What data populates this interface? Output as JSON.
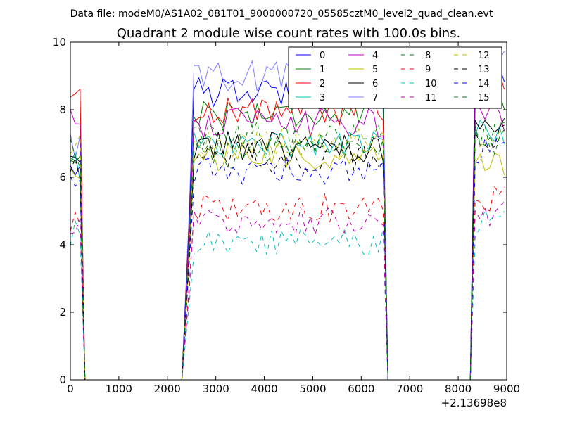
{
  "suptitle": "Data file: modeM0/AS1A02_081T01_9000000720_05585cztM0_level2_quad_clean.evt",
  "chart_data": {
    "type": "line",
    "title": "Quadrant 2 module wise count rates with 100.0s bins.",
    "xlabel": "",
    "ylabel": "",
    "xlim": [
      0,
      9000
    ],
    "ylim": [
      0,
      10
    ],
    "x_offset_label": "+2.13698e8",
    "xticks": [
      0,
      1000,
      2000,
      3000,
      4000,
      5000,
      6000,
      7000,
      8000,
      9000
    ],
    "yticks": [
      0,
      2,
      4,
      6,
      8,
      10
    ],
    "grid": false,
    "legend_position": "top-right",
    "legend_columns": 4,
    "segments": [
      {
        "start": 0,
        "end": 200
      },
      {
        "start": 2450,
        "end": 6450
      },
      {
        "start": 8350,
        "end": 9000
      }
    ],
    "zero_runs": [
      [
        300,
        2350
      ],
      [
        6550,
        8250
      ]
    ],
    "series": [
      {
        "name": "0",
        "color": "#0000ff",
        "dash": "solid",
        "alpha": 1.0,
        "level_a": 6.4,
        "level_b": 8.5,
        "level_c": 9.2
      },
      {
        "name": "1",
        "color": "#008000",
        "dash": "solid",
        "alpha": 1.0,
        "level_a": 6.5,
        "level_b": 7.9,
        "level_c": 8.4
      },
      {
        "name": "2",
        "color": "#ff0000",
        "dash": "solid",
        "alpha": 1.0,
        "level_a": 8.3,
        "level_b": 8.0,
        "level_c": 9.0
      },
      {
        "name": "3",
        "color": "#00bfbf",
        "dash": "solid",
        "alpha": 1.0,
        "level_a": 6.3,
        "level_b": 7.0,
        "level_c": 7.4
      },
      {
        "name": "4",
        "color": "#bf00bf",
        "dash": "solid",
        "alpha": 1.0,
        "level_a": 7.8,
        "level_b": 7.6,
        "level_c": 7.8
      },
      {
        "name": "5",
        "color": "#bfbf00",
        "dash": "solid",
        "alpha": 1.0,
        "level_a": 6.0,
        "level_b": 6.6,
        "level_c": 6.5
      },
      {
        "name": "6",
        "color": "#000000",
        "dash": "solid",
        "alpha": 1.0,
        "level_a": 6.3,
        "level_b": 6.9,
        "level_c": 7.3
      },
      {
        "name": "7",
        "color": "#0000ff",
        "dash": "solid",
        "alpha": 0.5,
        "level_a": 6.9,
        "level_b": 9.0,
        "level_c": 9.3
      },
      {
        "name": "8",
        "color": "#008000",
        "dash": "dashed",
        "alpha": 1.0,
        "level_a": 6.7,
        "level_b": 6.7,
        "level_c": 7.0
      },
      {
        "name": "9",
        "color": "#ff0000",
        "dash": "dashed",
        "alpha": 1.0,
        "level_a": 4.8,
        "level_b": 5.1,
        "level_c": 5.3
      },
      {
        "name": "10",
        "color": "#00bfbf",
        "dash": "dashed",
        "alpha": 1.0,
        "level_a": 4.3,
        "level_b": 4.1,
        "level_c": 4.6
      },
      {
        "name": "11",
        "color": "#bf00bf",
        "dash": "dashed",
        "alpha": 1.0,
        "level_a": 4.6,
        "level_b": 4.7,
        "level_c": 4.9
      },
      {
        "name": "12",
        "color": "#bfbf00",
        "dash": "dashed",
        "alpha": 1.0,
        "level_a": 6.9,
        "level_b": 7.0,
        "level_c": 7.1
      },
      {
        "name": "13",
        "color": "#000000",
        "dash": "dashed",
        "alpha": 1.0,
        "level_a": 6.3,
        "level_b": 6.6,
        "level_c": 7.2
      },
      {
        "name": "14",
        "color": "#0000ff",
        "dash": "dashed",
        "alpha": 1.0,
        "level_a": 6.1,
        "level_b": 6.2,
        "level_c": 6.7
      },
      {
        "name": "15",
        "color": "#008000",
        "dash": "dashed",
        "alpha": 1.0,
        "level_a": 6.6,
        "level_b": 7.2,
        "level_c": 7.3
      }
    ]
  }
}
